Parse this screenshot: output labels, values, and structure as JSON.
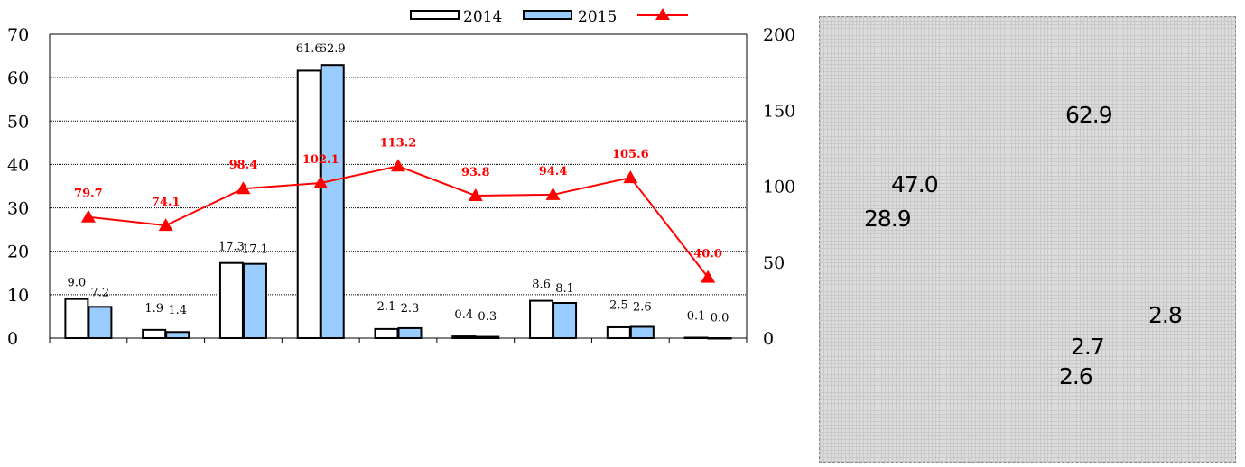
{
  "chart_data": {
    "type": "bar",
    "categories": [
      "",
      "",
      "",
      "",
      "",
      "",
      "",
      "",
      ""
    ],
    "series": [
      {
        "name": "2014",
        "kind": "bar",
        "axis": "left",
        "color": "#ffffff",
        "values": [
          9.0,
          1.9,
          17.3,
          61.6,
          2.1,
          0.4,
          8.6,
          2.5,
          0.1
        ],
        "labels": [
          "9.0",
          "1.9",
          "17.3",
          "61.6",
          "2.1",
          "0.4",
          "8.6",
          "2.5",
          "0.1"
        ]
      },
      {
        "name": "2015",
        "kind": "bar",
        "axis": "left",
        "color": "#99ccff",
        "values": [
          7.2,
          1.4,
          17.1,
          62.9,
          2.3,
          0.3,
          8.1,
          2.6,
          0.0
        ],
        "labels": [
          "7.2",
          "1.4",
          "17.1",
          "62.9",
          "2.3",
          "0.3",
          "8.1",
          "2.6",
          "0.0"
        ]
      },
      {
        "name": "",
        "kind": "line",
        "axis": "right",
        "color": "#ff0000",
        "marker": "triangle",
        "values": [
          79.7,
          74.1,
          98.4,
          102.1,
          113.2,
          93.8,
          94.4,
          105.6,
          40.0
        ],
        "labels": [
          "79.7",
          "74.1",
          "98.4",
          "102.1",
          "113.2",
          "93.8",
          "94.4",
          "105.6",
          "40.0"
        ]
      }
    ],
    "ylim_left": [
      0,
      70
    ],
    "yticks_left": [
      "0",
      "10",
      "20",
      "30",
      "40",
      "50",
      "60",
      "70"
    ],
    "ylim_right": [
      0,
      200
    ],
    "yticks_right": [
      "0",
      "50",
      "100",
      "150",
      "200"
    ],
    "grid": true,
    "legend_position": "top"
  },
  "side_panel": {
    "values": [
      "62.9",
      "47.0",
      "28.9",
      "2.8",
      "2.7",
      "2.6"
    ]
  }
}
